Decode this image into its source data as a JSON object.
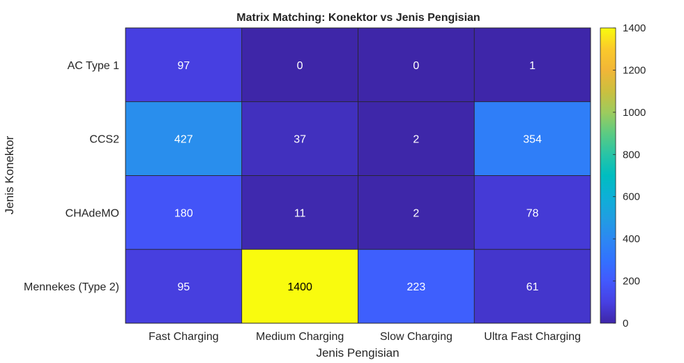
{
  "chart_data": {
    "type": "heatmap",
    "title": "Matrix Matching: Konektor vs Jenis Pengisian",
    "xlabel": "Jenis Pengisian",
    "ylabel": "Jenis Konektor",
    "x_categories": [
      "Fast Charging",
      "Medium Charging",
      "Slow Charging",
      "Ultra Fast Charging"
    ],
    "y_categories": [
      "AC Type 1",
      "CCS2",
      "CHAdeMO",
      "Mennekes (Type 2)"
    ],
    "values": [
      [
        97,
        0,
        0,
        1
      ],
      [
        427,
        37,
        2,
        354
      ],
      [
        180,
        11,
        2,
        78
      ],
      [
        95,
        1400,
        223,
        61
      ]
    ],
    "colormap": "parula",
    "colorbar": {
      "range": [
        0,
        1400
      ],
      "ticks": [
        0,
        200,
        400,
        600,
        800,
        1000,
        1200,
        1400
      ],
      "position": "right"
    },
    "grid": false,
    "colors": {
      "low": "#3e26a8",
      "high": "#f9fb0e",
      "text_on_dark": "#ffffff",
      "text_on_light": "#000000",
      "cell_border": "#262626"
    }
  }
}
